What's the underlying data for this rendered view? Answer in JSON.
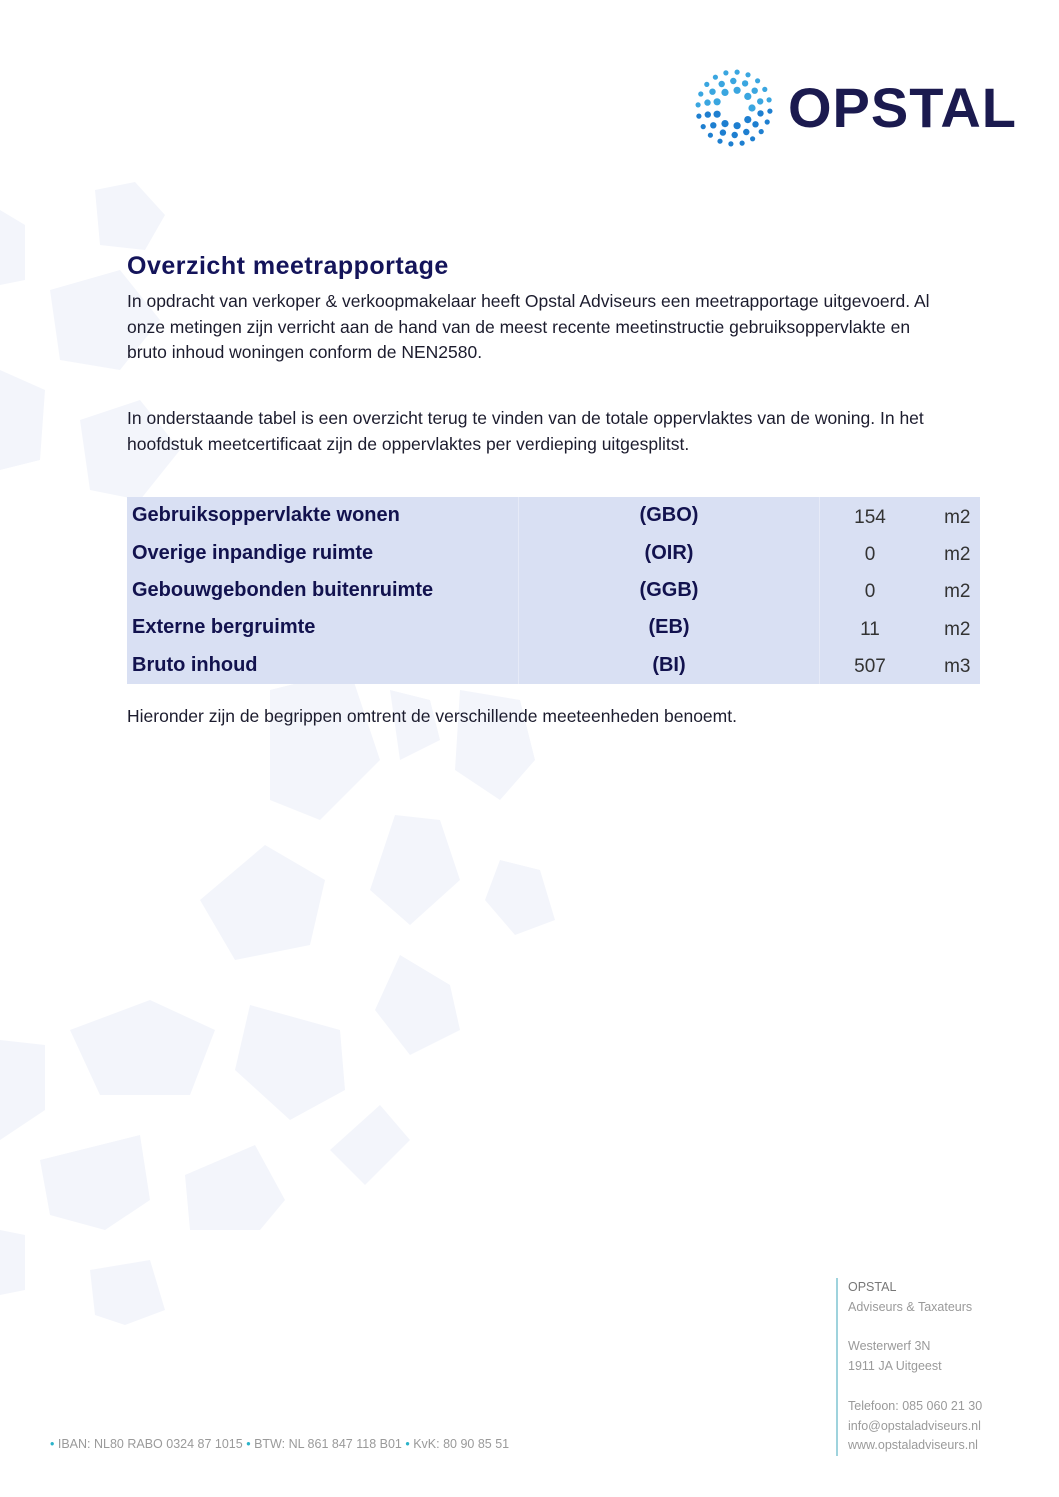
{
  "logo": {
    "text": "OPSTAL",
    "icon": "dotted-circle-logo",
    "colors": {
      "brand_dark": "#1b1a4f",
      "brand_blue": "#1e7fd0"
    }
  },
  "title": "Overzicht meetrapportage",
  "paragraphs": [
    "In opdracht van verkoper & verkoopmakelaar heeft Opstal Adviseurs een meetrapportage uitgevoerd. Al onze metingen zijn verricht aan de hand van de meest recente meetinstructie gebruiksoppervlakte en bruto inhoud woningen conform de NEN2580.",
    "In onderstaande tabel is een overzicht terug te vinden van de totale oppervlaktes van de woning. In het hoofdstuk meetcertificaat zijn de oppervlaktes per verdieping uitgesplitst.",
    "Hieronder zijn de begrippen omtrent de verschillende meeteenheden benoemt."
  ],
  "table": {
    "rows": [
      {
        "name": "Gebruiksoppervlakte wonen",
        "abbr": "(GBO)",
        "value": "154",
        "unit": "m2"
      },
      {
        "name": "Overige inpandige ruimte",
        "abbr": "(OIR)",
        "value": "0",
        "unit": "m2"
      },
      {
        "name": "Gebouwgebonden buitenruimte",
        "abbr": "(GGB)",
        "value": "0",
        "unit": "m2"
      },
      {
        "name": "Externe bergruimte",
        "abbr": "(EB)",
        "value": "11",
        "unit": "m2"
      },
      {
        "name": "Bruto inhoud",
        "abbr": "(BI)",
        "value": "507",
        "unit": "m3"
      }
    ]
  },
  "footer": {
    "company": "OPSTAL",
    "subtitle": "Adviseurs & Taxateurs",
    "street": "Westerwerf 3N",
    "city": "1911 JA Uitgeest",
    "phone": "Telefoon: 085 060 21 30",
    "email": "info@opstaladviseurs.nl",
    "website": "www.opstaladviseurs.nl",
    "iban": "IBAN: NL80 RABO 0324 87 1015",
    "btw": "BTW: NL 861 847 118 B01",
    "kvk": "KvK: 80 90 85 51"
  }
}
